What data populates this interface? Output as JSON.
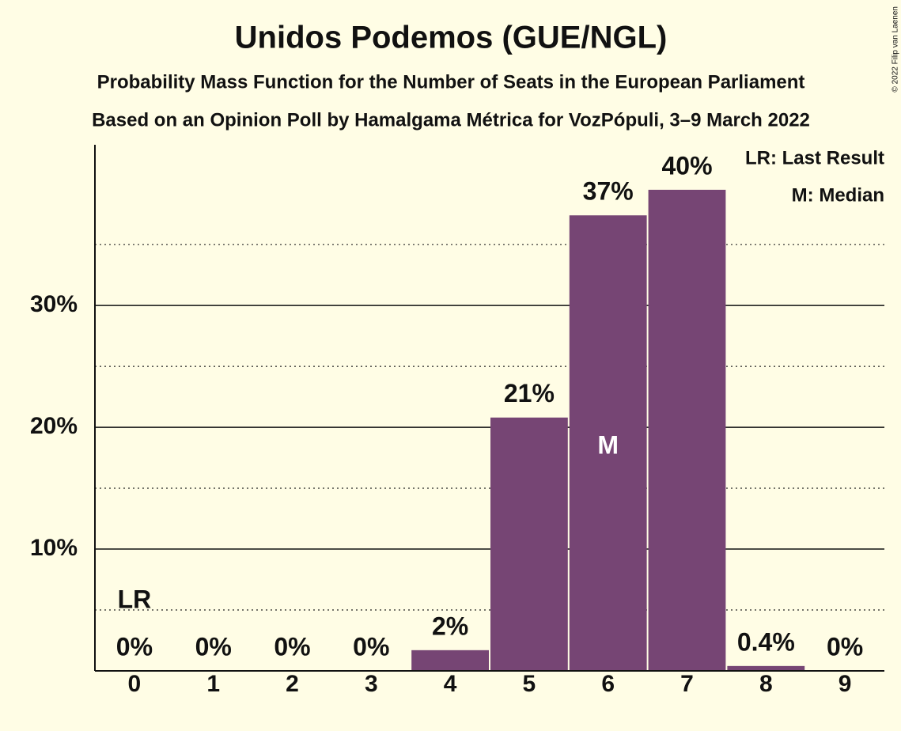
{
  "chart_data": {
    "type": "bar",
    "title": "Unidos Podemos (GUE/NGL)",
    "subtitle": [
      "Probability Mass Function for the Number of Seats in the European Parliament",
      "Based on an Opinion Poll by Hamalgama Métrica for VozPópuli, 3–9 March 2022"
    ],
    "categories": [
      "0",
      "1",
      "2",
      "3",
      "4",
      "5",
      "6",
      "7",
      "8",
      "9"
    ],
    "values": [
      0,
      0,
      0,
      0,
      1.7,
      20.8,
      37.4,
      39.5,
      0.4,
      0
    ],
    "value_labels": [
      "0%",
      "0%",
      "0%",
      "0%",
      "2%",
      "21%",
      "37%",
      "40%",
      "0.4%",
      "0%"
    ],
    "color": "#764574",
    "ylim": [
      0,
      43
    ],
    "yticks": [
      {
        "value": 10,
        "label": "10%"
      },
      {
        "value": 20,
        "label": "20%"
      },
      {
        "value": 30,
        "label": "30%"
      }
    ],
    "minor_grid": [
      5,
      15,
      25,
      35
    ],
    "grid": true,
    "annotations": [
      {
        "text": "LR",
        "category": "0"
      },
      {
        "text": "M",
        "category": "6"
      }
    ],
    "legend": [
      "LR: Last Result",
      "M: Median"
    ],
    "copyright": "© 2022 Filip van Laenen"
  }
}
